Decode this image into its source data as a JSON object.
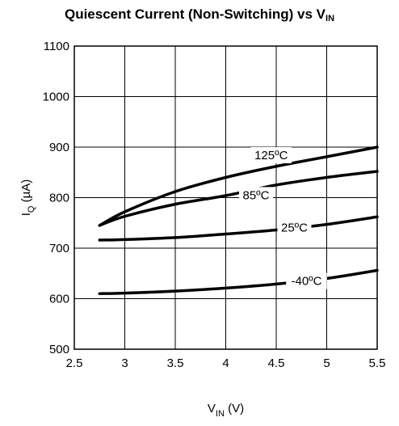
{
  "chart_data": {
    "type": "line",
    "title": {
      "main": "Quiescent Current (Non-Switching) vs V",
      "sub": "IN"
    },
    "xlabel": {
      "main": "V",
      "sub": "IN",
      "rest": " (V)"
    },
    "ylabel": {
      "main": "I",
      "sub": "Q",
      "rest": " (µA)"
    },
    "xlim": [
      2.5,
      5.5
    ],
    "ylim": [
      500,
      1100
    ],
    "xticks": [
      2.5,
      3,
      3.5,
      4,
      4.5,
      5,
      5.5
    ],
    "xtick_labels": [
      "2.5",
      "3",
      "3.5",
      "4",
      "4.5",
      "5",
      "5.5"
    ],
    "yticks": [
      500,
      600,
      700,
      800,
      900,
      1000,
      1100
    ],
    "ytick_labels": [
      "500",
      "600",
      "700",
      "800",
      "900",
      "1000",
      "1100"
    ],
    "grid": true,
    "series_color": "#000000",
    "series": [
      {
        "name": "125ºC",
        "x": [
          2.75,
          3.0,
          3.5,
          4.0,
          4.5,
          5.0,
          5.5
        ],
        "y": [
          745,
          772,
          812,
          840,
          862,
          881,
          900
        ],
        "label_at": [
          4.45,
          884
        ]
      },
      {
        "name": "85ºC",
        "x": [
          2.75,
          3.0,
          3.5,
          4.0,
          4.5,
          5.0,
          5.5
        ],
        "y": [
          745,
          763,
          787,
          804,
          825,
          840,
          852
        ],
        "label_at": [
          4.3,
          805
        ]
      },
      {
        "name": "25ºC",
        "x": [
          2.75,
          3.0,
          3.5,
          4.0,
          4.5,
          5.0,
          5.5
        ],
        "y": [
          716,
          717,
          721,
          728,
          736,
          747,
          762
        ],
        "label_at": [
          4.68,
          741
        ]
      },
      {
        "name": "-40ºC",
        "x": [
          2.75,
          3.0,
          3.5,
          4.0,
          4.5,
          5.0,
          5.5
        ],
        "y": [
          610,
          611,
          615,
          621,
          629,
          640,
          656
        ],
        "label_at": [
          4.8,
          635
        ]
      }
    ]
  }
}
